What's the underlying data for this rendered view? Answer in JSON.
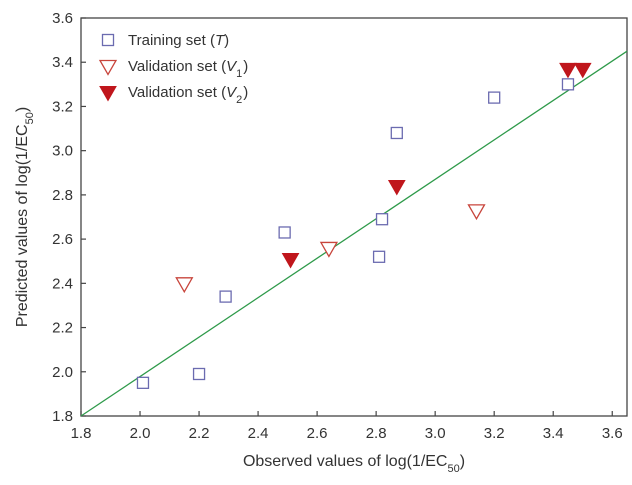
{
  "chart_data": {
    "type": "scatter",
    "xlabel": {
      "pre": "Observed values of log(1/EC",
      "sub": "50",
      "post": ")"
    },
    "ylabel": {
      "pre": "Predicted values of log(1/EC",
      "sub": "50",
      "post": ")"
    },
    "xlim": [
      1.8,
      3.65
    ],
    "ylim": [
      1.8,
      3.6
    ],
    "xticks": [
      1.8,
      2.0,
      2.2,
      2.4,
      2.6,
      2.8,
      3.0,
      3.2,
      3.4,
      3.6
    ],
    "yticks": [
      1.8,
      2.0,
      2.2,
      2.4,
      2.6,
      2.8,
      3.0,
      3.2,
      3.4,
      3.6
    ],
    "xtick_labels": [
      "1.8",
      "2.0",
      "2.2",
      "2.4",
      "2.6",
      "2.8",
      "3.0",
      "3.2",
      "3.4",
      "3.6"
    ],
    "ytick_labels": [
      "1.8",
      "2.0",
      "2.2",
      "2.4",
      "2.6",
      "2.8",
      "3.0",
      "3.2",
      "3.4",
      "3.6"
    ],
    "grid": false,
    "legend_position": "top-left",
    "series": [
      {
        "name": {
          "pre": "Training set (",
          "italic": "T",
          "sub": "",
          "post": ")"
        },
        "marker": "open-square",
        "color": "#6b6bb0",
        "points": [
          [
            2.01,
            1.95
          ],
          [
            2.2,
            1.99
          ],
          [
            2.29,
            2.34
          ],
          [
            2.49,
            2.63
          ],
          [
            2.81,
            2.52
          ],
          [
            2.82,
            2.69
          ],
          [
            2.87,
            3.08
          ],
          [
            3.2,
            3.24
          ],
          [
            3.45,
            3.3
          ]
        ]
      },
      {
        "name": {
          "pre": "Validation set (",
          "italic": "V",
          "sub": "1",
          "post": ")"
        },
        "marker": "open-triangle-down",
        "color": "#c8453c",
        "points": [
          [
            2.15,
            2.4
          ],
          [
            2.64,
            2.56
          ],
          [
            3.14,
            2.73
          ]
        ]
      },
      {
        "name": {
          "pre": "Validation set (",
          "italic": "V",
          "sub": "2",
          "post": ")"
        },
        "marker": "filled-triangle-down",
        "color": "#c0161c",
        "points": [
          [
            2.51,
            2.51
          ],
          [
            2.87,
            2.84
          ],
          [
            3.45,
            3.37
          ],
          [
            3.5,
            3.37
          ]
        ]
      }
    ],
    "regression_line": {
      "color": "#2e9a4a",
      "points": [
        [
          1.8,
          1.8
        ],
        [
          3.65,
          3.45
        ]
      ]
    }
  }
}
